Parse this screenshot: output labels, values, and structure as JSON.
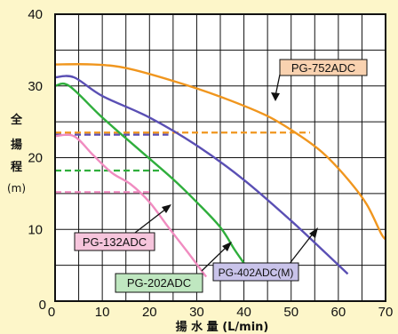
{
  "chart_data": {
    "type": "line",
    "xlabel": "揚 水 量 (L/min)",
    "ylabel_chars": [
      "全",
      "揚",
      "程",
      "(m)"
    ],
    "xlim": [
      0,
      70
    ],
    "ylim": [
      0,
      40
    ],
    "x_ticks": [
      "0",
      "10",
      "20",
      "30",
      "40",
      "50",
      "60",
      "70"
    ],
    "y_ticks": [
      "0",
      "10",
      "20",
      "30",
      "40"
    ],
    "grid": true,
    "series": [
      {
        "name": "PG-752ADC",
        "color": "#f0961e",
        "label_bg": "#f9d2b0",
        "points": [
          [
            0,
            33
          ],
          [
            8,
            33
          ],
          [
            15,
            32.5
          ],
          [
            25,
            30.7
          ],
          [
            35,
            28.5
          ],
          [
            45,
            25.8
          ],
          [
            52,
            23
          ],
          [
            57,
            20.5
          ],
          [
            62,
            17
          ],
          [
            66,
            13.5
          ],
          [
            69,
            9.5
          ],
          [
            70,
            8.6
          ]
        ],
        "dashed_level": 23.5,
        "dashed_to": 54
      },
      {
        "name": "PG-402ADC(M)",
        "color": "#5a4fb4",
        "label_bg": "#c9c3ea",
        "points": [
          [
            0,
            31.2
          ],
          [
            4,
            31.2
          ],
          [
            10,
            28.6
          ],
          [
            20,
            25.6
          ],
          [
            30,
            21.7
          ],
          [
            40,
            16.9
          ],
          [
            50,
            11.2
          ],
          [
            57,
            6.9
          ],
          [
            62,
            3.8
          ]
        ],
        "dashed_level": 23.2,
        "dashed_to": 24
      },
      {
        "name": "PG-202ADC",
        "color": "#2fae3c",
        "label_bg": "#bfe7c0",
        "points": [
          [
            0,
            30
          ],
          [
            3,
            30
          ],
          [
            10,
            25.6
          ],
          [
            18,
            21
          ],
          [
            25,
            17
          ],
          [
            30,
            13.8
          ],
          [
            35,
            10.3
          ],
          [
            38,
            7.2
          ],
          [
            40,
            5.3
          ]
        ],
        "dashed_level": 18.2,
        "dashed_to": 23
      },
      {
        "name": "PG-132ADC",
        "color": "#f08cc0",
        "label_bg": "#f6c5dc",
        "points": [
          [
            0,
            23
          ],
          [
            4,
            23
          ],
          [
            8,
            20.4
          ],
          [
            12,
            17.9
          ],
          [
            16,
            16.3
          ],
          [
            20,
            13.8
          ],
          [
            24,
            10.3
          ],
          [
            28,
            6.9
          ],
          [
            32,
            3.4
          ]
        ],
        "dashed_level": 15.2,
        "dashed_to": 20
      }
    ]
  }
}
